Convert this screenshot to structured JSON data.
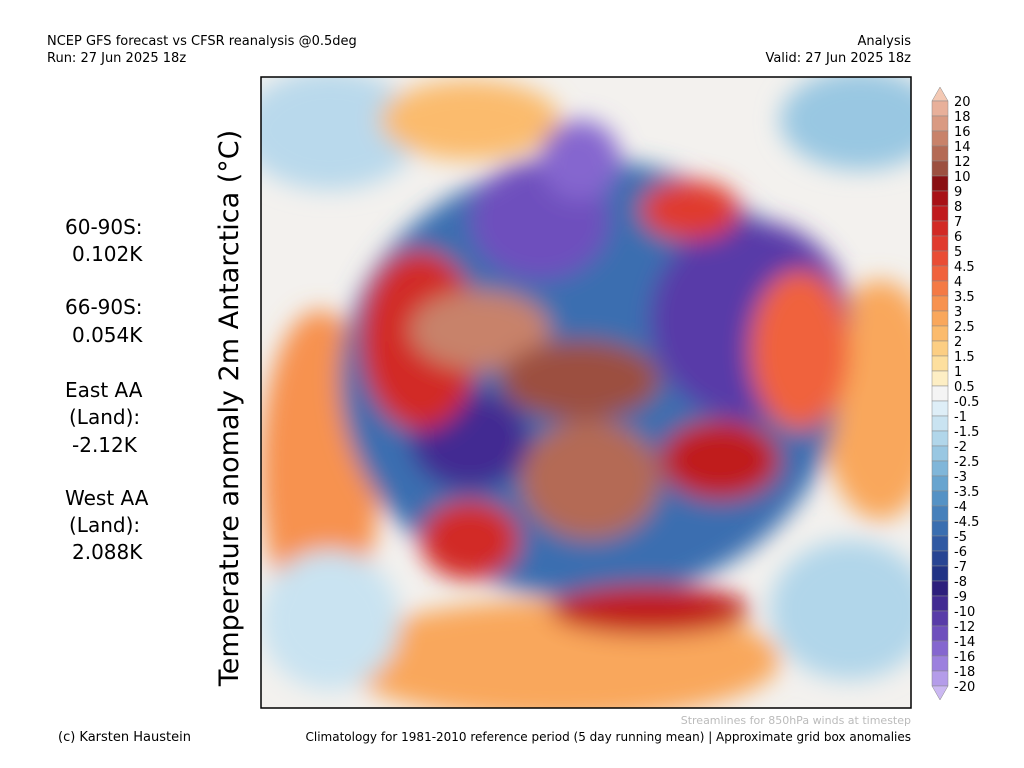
{
  "header": {
    "title": "NCEP GFS forecast vs CFSR reanalysis @0.5deg",
    "run": "Run: 27 Jun 2025 18z",
    "mode": "Analysis",
    "valid": "Valid: 27 Jun 2025 18z"
  },
  "map": {
    "axis_label": "Temperature anomaly 2m Antarctica (°C)"
  },
  "stats": {
    "lines": [
      "60-90S:",
      "0.102K",
      "66-90S:",
      "0.054K",
      "East AA",
      "(Land):",
      "-2.12K",
      "West AA",
      "(Land):",
      "2.088K"
    ]
  },
  "colorbar": {
    "labels": [
      "20",
      "18",
      "16",
      "14",
      "12",
      "10",
      "9",
      "8",
      "7",
      "6",
      "5",
      "4.5",
      "4",
      "3.5",
      "3",
      "2.5",
      "2",
      "1.5",
      "1",
      "0.5",
      "-0.5",
      "-1",
      "-1.5",
      "-2",
      "-2.5",
      "-3",
      "-3.5",
      "-4",
      "-4.5",
      "-5",
      "-6",
      "-7",
      "-8",
      "-9",
      "-10",
      "-12",
      "-14",
      "-16",
      "-18",
      "-20"
    ],
    "colors": [
      "#f4c9b4",
      "#e8b09a",
      "#d99a82",
      "#c8826a",
      "#b46a55",
      "#9c5040",
      "#8a0f12",
      "#a81217",
      "#c01b1e",
      "#d22a25",
      "#e03b2e",
      "#e94d35",
      "#f0623d",
      "#f47a45",
      "#f7924f",
      "#f9a75c",
      "#fbbb6d",
      "#fcce83",
      "#fddf9e",
      "#fdeec4",
      "#f4f4f4",
      "#deeef7",
      "#c9e3f1",
      "#b1d6ea",
      "#99c7e2",
      "#80b6d9",
      "#68a4cf",
      "#5592c5",
      "#4680bb",
      "#3a6eb0",
      "#3059a2",
      "#284593",
      "#213385",
      "#2d1f7c",
      "#422b92",
      "#583ba8",
      "#6e4fbd",
      "#8566cf",
      "#9c80de",
      "#b49ce9",
      "#cbb8f2"
    ]
  },
  "footer": {
    "credit": "(c) Karsten Haustein",
    "streamlines": "Streamlines for 850hPa winds at timestep",
    "climatology": "Climatology for 1981-2010 reference period (5 day running mean) | Approximate grid box anomalies"
  }
}
